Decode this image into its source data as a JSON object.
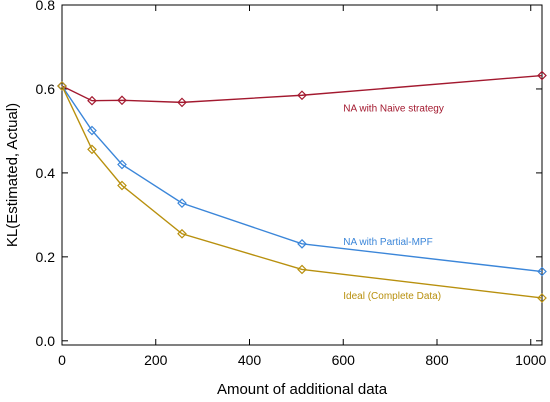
{
  "chart_data": {
    "type": "line",
    "title": "",
    "xlabel": "Amount of additional data",
    "ylabel": "KL(Estimated, Actual)",
    "xlim": [
      0,
      1024
    ],
    "ylim": [
      -0.01,
      0.8
    ],
    "xticks": [
      0,
      200,
      400,
      600,
      800,
      1000
    ],
    "yticks": [
      0.0,
      0.2,
      0.4,
      0.6,
      0.8
    ],
    "xtick_labels": [
      "0",
      "200",
      "400",
      "600",
      "800",
      "1000"
    ],
    "ytick_labels": [
      "0.0",
      "0.2",
      "0.4",
      "0.6",
      "0.8"
    ],
    "grid": false,
    "marker": "diamond",
    "series": [
      {
        "name": "NA with Naive strategy",
        "color": "#a3192f",
        "x": [
          0,
          64,
          128,
          256,
          512,
          1024
        ],
        "y": [
          0.607,
          0.572,
          0.573,
          0.568,
          0.585,
          0.632
        ],
        "label_anchor": [
          600,
          0.546
        ]
      },
      {
        "name": "NA with Partial-MPF",
        "color": "#3b86d9",
        "x": [
          0,
          64,
          128,
          256,
          512,
          1024
        ],
        "y": [
          0.607,
          0.501,
          0.42,
          0.328,
          0.231,
          0.165
        ],
        "label_anchor": [
          600,
          0.228
        ]
      },
      {
        "name": "Ideal (Complete Data)",
        "color": "#b8900e",
        "x": [
          0,
          64,
          128,
          256,
          512,
          1024
        ],
        "y": [
          0.607,
          0.456,
          0.37,
          0.255,
          0.17,
          0.102
        ],
        "label_anchor": [
          600,
          0.1
        ]
      }
    ]
  }
}
